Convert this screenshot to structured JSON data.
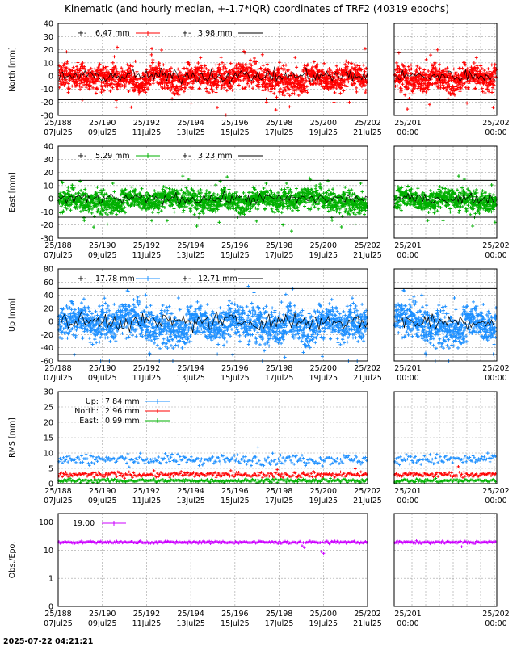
{
  "chart_data": {
    "type": "scatter",
    "title": "Kinematic (and hourly median, +-1.7*IQR) coordinates of TRF2 (40319 epochs)",
    "timestamp": "2025-07-22 04:21:21",
    "x_ticks_main": [
      {
        "top": "25/188",
        "bottom": "07Jul25"
      },
      {
        "top": "25/190",
        "bottom": "09Jul25"
      },
      {
        "top": "25/192",
        "bottom": "11Jul25"
      },
      {
        "top": "25/194",
        "bottom": "13Jul25"
      },
      {
        "top": "25/196",
        "bottom": "15Jul25"
      },
      {
        "top": "25/198",
        "bottom": "17Jul25"
      },
      {
        "top": "25/200",
        "bottom": "19Jul25"
      },
      {
        "top": "25/202",
        "bottom": "21Jul25"
      }
    ],
    "x_ticks_zoom": [
      {
        "top": "25/201",
        "bottom": "00:00"
      },
      {
        "top": "25/202",
        "bottom": "00:00"
      }
    ],
    "panels": [
      {
        "id": "north",
        "ylabel": "North [mm]",
        "color": "#ff0000",
        "ylim": [
          -30,
          40
        ],
        "yticks": [
          -30,
          -20,
          -10,
          0,
          10,
          20,
          30,
          40
        ],
        "iqr_band": [
          -18,
          18
        ],
        "noise": 6.5,
        "spike": 12,
        "legend": {
          "kinematic_label": "6.47 mm",
          "median_label": "3.98 mm"
        }
      },
      {
        "id": "east",
        "ylabel": "East [mm]",
        "color": "#00b000",
        "ylim": [
          -30,
          40
        ],
        "yticks": [
          -30,
          -20,
          -10,
          0,
          10,
          20,
          30,
          40
        ],
        "iqr_band": [
          -14,
          14
        ],
        "noise": 5.3,
        "spike": 10,
        "legend": {
          "kinematic_label": "5.29 mm",
          "median_label": "3.23 mm"
        }
      },
      {
        "id": "up",
        "ylabel": "Up [mm]",
        "color": "#1e90ff",
        "ylim": [
          -60,
          80
        ],
        "yticks": [
          -60,
          -40,
          -20,
          0,
          20,
          40,
          60,
          80
        ],
        "iqr_band": [
          -50,
          50
        ],
        "noise": 17.8,
        "spike": 30,
        "legend": {
          "kinematic_label": "17.78 mm",
          "median_label": "12.71 mm"
        }
      }
    ],
    "rms_panel": {
      "ylabel": "RMS [mm]",
      "ylim": [
        0,
        30
      ],
      "yticks": [
        0,
        5,
        10,
        15,
        20,
        25,
        30
      ],
      "series": [
        {
          "name": "Up:",
          "value_label": "7.84 mm",
          "color": "#1e90ff",
          "level": 7.84
        },
        {
          "name": "North:",
          "value_label": "2.96 mm",
          "color": "#ff0000",
          "level": 2.96
        },
        {
          "name": "East:",
          "value_label": "0.99 mm",
          "color": "#00b000",
          "level": 0.99
        }
      ]
    },
    "obs_panel": {
      "ylabel": "Obs./Epo.",
      "scale": "log",
      "yticks": [
        {
          "v": 0.1,
          "label": "0"
        },
        {
          "v": 1,
          "label": "1"
        },
        {
          "v": 10,
          "label": "10"
        },
        {
          "v": 100,
          "label": "100"
        }
      ],
      "color": "#cc00ff",
      "level": 19.0,
      "legend_label": "19.00"
    }
  }
}
